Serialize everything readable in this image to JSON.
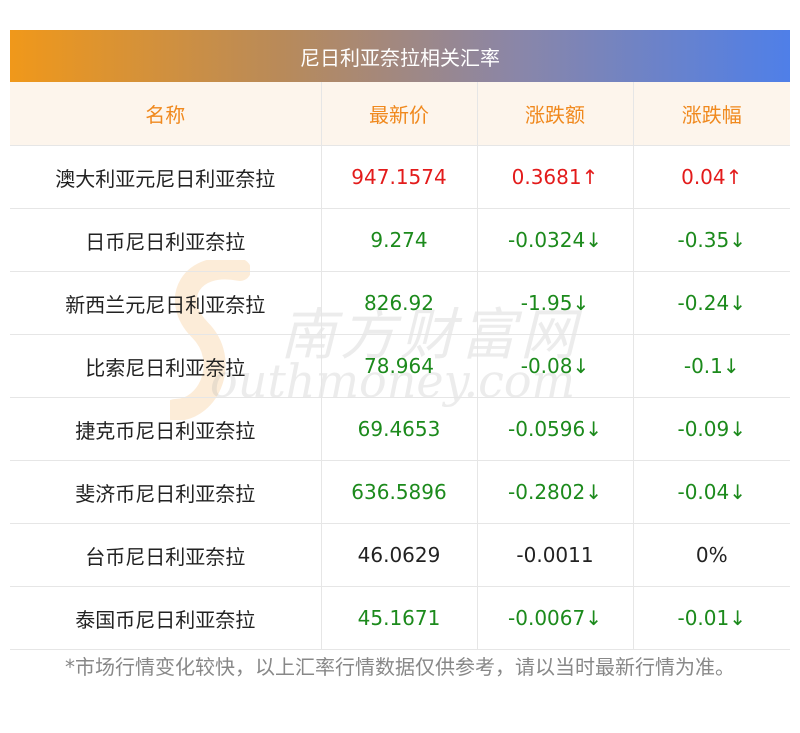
{
  "title": "尼日利亚奈拉相关汇率",
  "headers": [
    "名称",
    "最新价",
    "涨跌额",
    "涨跌幅"
  ],
  "rows": [
    {
      "name": "澳大利亚元尼日利亚奈拉",
      "price": "947.1574",
      "change": "0.3681↑",
      "pct": "0.04↑",
      "dir": "up"
    },
    {
      "name": "日币尼日利亚奈拉",
      "price": "9.274",
      "change": "-0.0324↓",
      "pct": "-0.35↓",
      "dir": "down"
    },
    {
      "name": "新西兰元尼日利亚奈拉",
      "price": "826.92",
      "change": "-1.95↓",
      "pct": "-0.24↓",
      "dir": "down"
    },
    {
      "name": "比索尼日利亚奈拉",
      "price": "78.964",
      "change": "-0.08↓",
      "pct": "-0.1↓",
      "dir": "down"
    },
    {
      "name": "捷克币尼日利亚奈拉",
      "price": "69.4653",
      "change": "-0.0596↓",
      "pct": "-0.09↓",
      "dir": "down"
    },
    {
      "name": "斐济币尼日利亚奈拉",
      "price": "636.5896",
      "change": "-0.2802↓",
      "pct": "-0.04↓",
      "dir": "down"
    },
    {
      "name": "台币尼日利亚奈拉",
      "price": "46.0629",
      "change": "-0.0011",
      "pct": "0%",
      "dir": "flat"
    },
    {
      "name": "泰国币尼日利亚奈拉",
      "price": "45.1671",
      "change": "-0.0067↓",
      "pct": "-0.01↓",
      "dir": "down"
    }
  ],
  "watermark": {
    "cn": "南方财富网",
    "en": "outhmoney.com"
  },
  "note": "*市场行情变化较快，以上汇率行情数据仅供参考，请以当时最新行情为准。",
  "colors": {
    "up": "#e31b1b",
    "down": "#1c8a1c",
    "header_text": "#f0891e",
    "header_bg": "#fdf5ec"
  }
}
